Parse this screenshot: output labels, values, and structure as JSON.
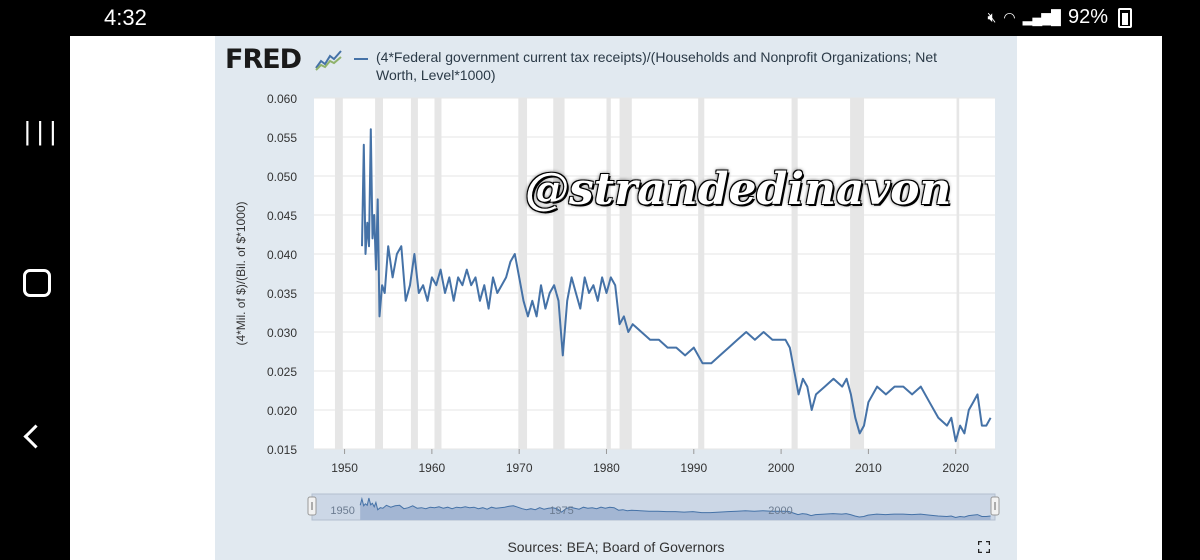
{
  "status_bar": {
    "time": "4:32",
    "battery": "92%"
  },
  "chart_header": {
    "logo": "FRED",
    "legend": "(4*Federal government current tax receipts)/(Households and Nonprofit Organizations; Net Worth, Level*1000)"
  },
  "watermark": "@strandedinavon",
  "footer": {
    "sources": "Sources: BEA; Board of Governors"
  },
  "colors": {
    "series": "#4572a7",
    "recession": "#e6e6e6",
    "panel_bg": "#e1e9f0"
  },
  "chart_data": {
    "type": "line",
    "ylabel": "(4*Mil. of $)/(Bil. of $*1000)",
    "xlabel": "",
    "xlim": [
      1946.5,
      2024.5
    ],
    "ylim": [
      0.015,
      0.06
    ],
    "x_ticks": [
      1950,
      1960,
      1970,
      1980,
      1990,
      2000,
      2010,
      2020
    ],
    "y_ticks": [
      0.015,
      0.02,
      0.025,
      0.03,
      0.035,
      0.04,
      0.045,
      0.05,
      0.055,
      0.06
    ],
    "y_tick_labels": [
      "0.015",
      "0.020",
      "0.025",
      "0.030",
      "0.035",
      "0.040",
      "0.045",
      "0.050",
      "0.055",
      "0.060"
    ],
    "grid": true,
    "legend_position": "top",
    "recessions": [
      [
        1948.9,
        1949.8
      ],
      [
        1953.5,
        1954.4
      ],
      [
        1957.6,
        1958.4
      ],
      [
        1960.3,
        1961.1
      ],
      [
        1969.9,
        1970.9
      ],
      [
        1973.9,
        1975.2
      ],
      [
        1980.0,
        1980.5
      ],
      [
        1981.5,
        1982.9
      ],
      [
        1990.5,
        1991.2
      ],
      [
        2001.2,
        2001.9
      ],
      [
        2007.9,
        2009.5
      ],
      [
        2020.1,
        2020.4
      ]
    ],
    "series": [
      {
        "x": [
          1952.0,
          1952.2,
          1952.4,
          1952.6,
          1952.8,
          1953.0,
          1953.2,
          1953.4,
          1953.6,
          1953.8,
          1954.0,
          1954.3,
          1954.6,
          1955.0,
          1955.5,
          1956.0,
          1956.5,
          1957.0,
          1957.5,
          1958.0,
          1958.5,
          1959.0,
          1959.5,
          1960.0,
          1960.5,
          1961.0,
          1961.5,
          1962.0,
          1962.5,
          1963.0,
          1963.5,
          1964.0,
          1964.5,
          1965.0,
          1965.5,
          1966.0,
          1966.5,
          1967.0,
          1967.5,
          1968.0,
          1968.5,
          1969.0,
          1969.5,
          1970.0,
          1970.5,
          1971.0,
          1971.5,
          1972.0,
          1972.5,
          1973.0,
          1973.5,
          1974.0,
          1974.5,
          1975.0,
          1975.5,
          1976.0,
          1976.5,
          1977.0,
          1977.5,
          1978.0,
          1978.5,
          1979.0,
          1979.5,
          1980.0,
          1980.5,
          1981.0,
          1981.5,
          1982.0,
          1982.5,
          1983.0,
          1984.0,
          1985.0,
          1986.0,
          1987.0,
          1988.0,
          1989.0,
          1990.0,
          1991.0,
          1992.0,
          1993.0,
          1994.0,
          1995.0,
          1996.0,
          1997.0,
          1998.0,
          1999.0,
          2000.0,
          2000.5,
          2001.0,
          2001.5,
          2002.0,
          2002.5,
          2003.0,
          2003.5,
          2004.0,
          2005.0,
          2006.0,
          2007.0,
          2007.5,
          2008.0,
          2008.5,
          2009.0,
          2009.5,
          2010.0,
          2011.0,
          2012.0,
          2013.0,
          2014.0,
          2015.0,
          2016.0,
          2017.0,
          2018.0,
          2019.0,
          2019.5,
          2020.0,
          2020.5,
          2021.0,
          2021.5,
          2022.0,
          2022.5,
          2023.0,
          2023.5,
          2024.0
        ],
        "values": [
          0.041,
          0.054,
          0.04,
          0.044,
          0.041,
          0.056,
          0.042,
          0.045,
          0.038,
          0.047,
          0.032,
          0.036,
          0.035,
          0.041,
          0.037,
          0.04,
          0.041,
          0.034,
          0.036,
          0.04,
          0.035,
          0.036,
          0.034,
          0.037,
          0.036,
          0.038,
          0.035,
          0.037,
          0.034,
          0.037,
          0.036,
          0.038,
          0.036,
          0.037,
          0.034,
          0.036,
          0.033,
          0.037,
          0.035,
          0.036,
          0.037,
          0.039,
          0.04,
          0.037,
          0.034,
          0.032,
          0.034,
          0.032,
          0.036,
          0.033,
          0.035,
          0.036,
          0.034,
          0.027,
          0.034,
          0.037,
          0.035,
          0.033,
          0.037,
          0.035,
          0.036,
          0.034,
          0.037,
          0.035,
          0.037,
          0.036,
          0.031,
          0.032,
          0.03,
          0.031,
          0.03,
          0.029,
          0.029,
          0.028,
          0.028,
          0.027,
          0.028,
          0.026,
          0.026,
          0.027,
          0.028,
          0.029,
          0.03,
          0.029,
          0.03,
          0.029,
          0.029,
          0.029,
          0.028,
          0.025,
          0.022,
          0.024,
          0.023,
          0.02,
          0.022,
          0.023,
          0.024,
          0.023,
          0.024,
          0.022,
          0.019,
          0.017,
          0.018,
          0.021,
          0.023,
          0.022,
          0.023,
          0.023,
          0.022,
          0.023,
          0.021,
          0.019,
          0.018,
          0.019,
          0.016,
          0.018,
          0.017,
          0.02,
          0.021,
          0.022,
          0.018,
          0.018,
          0.019
        ]
      }
    ],
    "navigator": {
      "labels": [
        "1950",
        "1975",
        "2000"
      ],
      "label_years": [
        1950,
        1975,
        2000
      ]
    }
  }
}
